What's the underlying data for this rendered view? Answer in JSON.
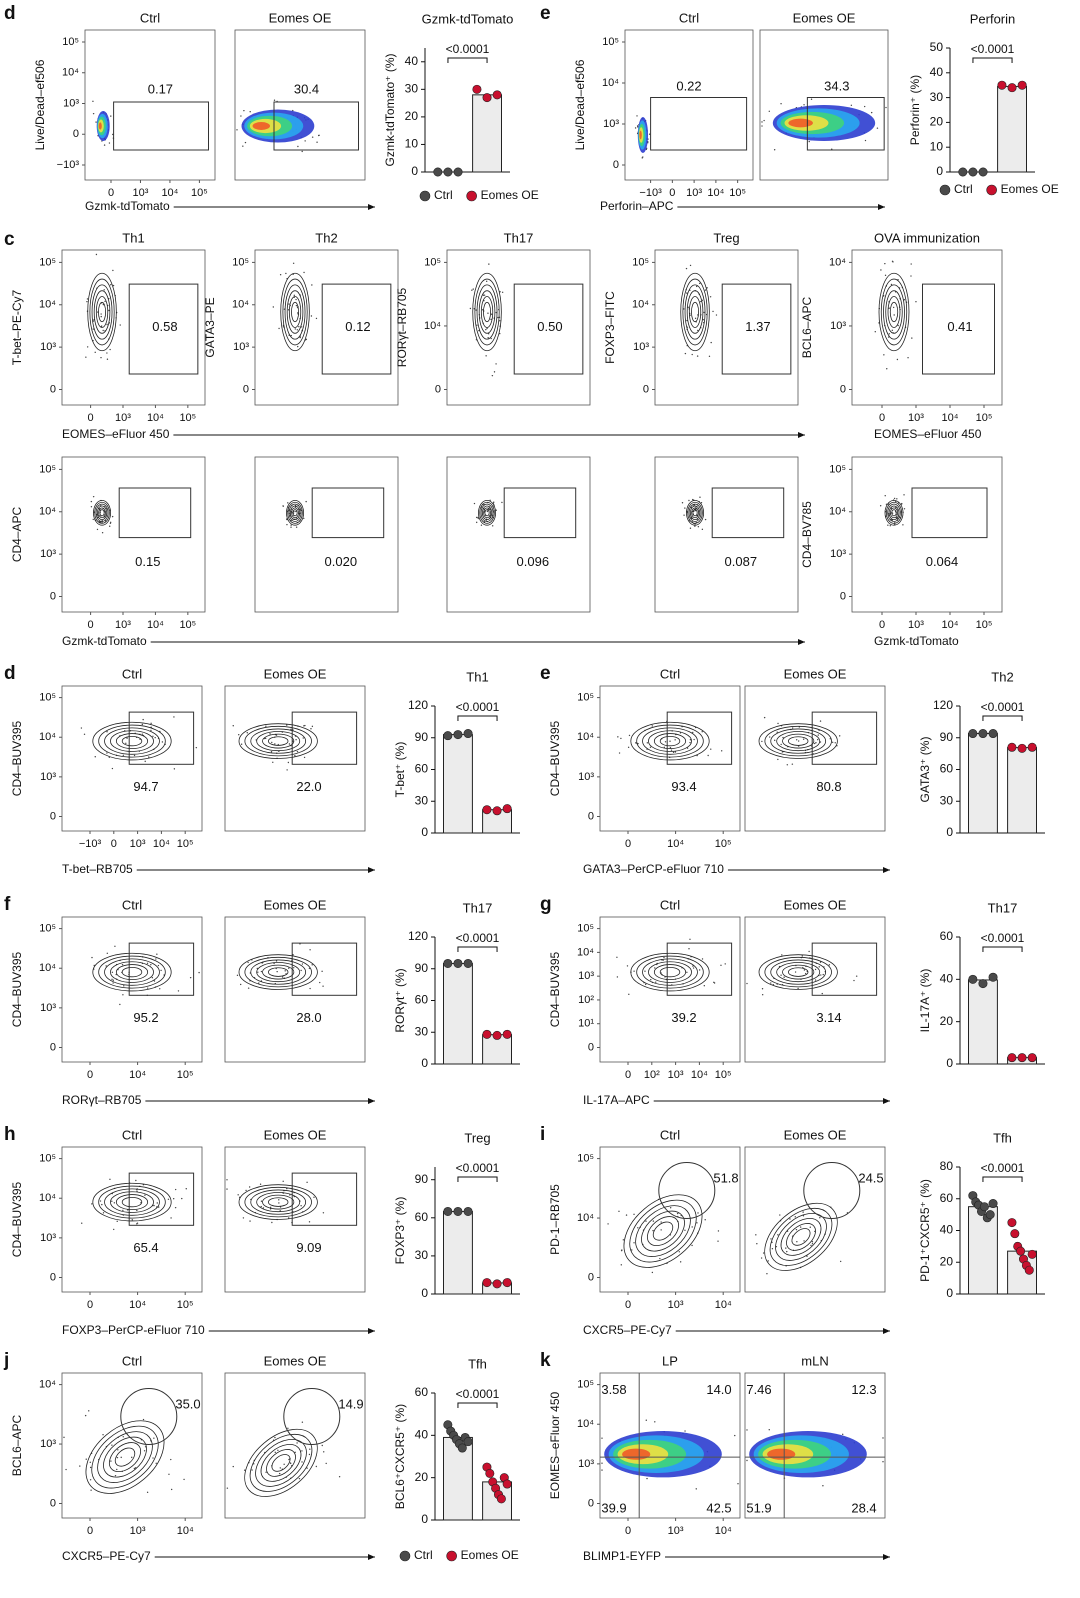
{
  "legends": [
    {
      "items": [
        {
          "name": "Ctrl",
          "color": "#4a4a4a"
        },
        {
          "name": "Eomes OE",
          "color": "#c8102e"
        }
      ]
    },
    {
      "items": [
        {
          "name": "Ctrl",
          "color": "#4a4a4a"
        },
        {
          "name": "Eomes OE",
          "color": "#c8102e"
        }
      ]
    },
    {
      "items": [
        {
          "name": "Ctrl",
          "color": "#4a4a4a"
        },
        {
          "name": "Eomes OE",
          "color": "#c8102e"
        }
      ]
    }
  ],
  "panels": [
    {
      "letter": "d",
      "xlabel": "Gzmk-tdTomato",
      "flows": [
        {
          "title": "Ctrl",
          "ylabel": "Live/Dead–ef506",
          "yticks": [
            "10⁵",
            "10⁴",
            "10³",
            "0",
            "−10³"
          ],
          "xticks": [
            "0",
            "10³",
            "10⁴",
            "10⁵"
          ],
          "gates": [
            "0.17"
          ]
        },
        {
          "title": "Eomes OE",
          "gates": [
            "30.4"
          ]
        }
      ],
      "bar": {
        "title": "Gzmk-tdTomato",
        "ylabel": "Gzmk-tdTomato⁺ (%)",
        "ylim": [
          0,
          45
        ],
        "yticks": [
          0,
          10,
          20,
          30,
          40
        ],
        "pvalue": "<0.0001",
        "series": [
          {
            "color": "#4a4a4a",
            "mean": 0,
            "values": [
              0,
              0,
              0
            ]
          },
          {
            "color": "#c8102e",
            "mean": 28,
            "values": [
              30,
              27,
              28
            ]
          }
        ]
      }
    },
    {
      "letter": "e",
      "xlabel": "Perforin–APC",
      "flows": [
        {
          "title": "Ctrl",
          "ylabel": "Live/Dead–ef506",
          "yticks": [
            "10⁵",
            "10⁴",
            "10³",
            "0"
          ],
          "xticks": [
            "−10³",
            "0",
            "10³",
            "10⁴",
            "10⁵"
          ],
          "gates": [
            "0.22"
          ]
        },
        {
          "title": "Eomes OE",
          "gates": [
            "34.3"
          ]
        }
      ],
      "bar": {
        "title": "Perforin",
        "ylabel": "Perforin⁺ (%)",
        "ylim": [
          0,
          50
        ],
        "yticks": [
          0,
          10,
          20,
          30,
          40,
          50
        ],
        "pvalue": "<0.0001",
        "series": [
          {
            "color": "#4a4a4a",
            "mean": 0,
            "values": [
              0,
              0,
              0
            ]
          },
          {
            "color": "#c8102e",
            "mean": 34.5,
            "values": [
              35,
              34,
              35
            ]
          }
        ]
      }
    },
    {
      "letter": "c",
      "flows": [
        {
          "title": "Th1",
          "ylabel": "T-bet–PE-Cy7",
          "yticks": [
            "10⁵",
            "10⁴",
            "10³",
            "0"
          ],
          "xticks": [
            "0",
            "10³",
            "10⁴",
            "10⁵"
          ],
          "xlabel": "EOMES–eFluor 450",
          "gates": [
            "0.58"
          ]
        },
        {
          "title": "Th2",
          "ylabel": "GATA3–PE",
          "yticks": [
            "10⁵",
            "10⁴",
            "10³",
            "0"
          ],
          "gates": [
            "0.12"
          ]
        },
        {
          "title": "Th17",
          "ylabel": "RORγt–RB705",
          "yticks": [
            "10⁵",
            "10⁴",
            "0"
          ],
          "gates": [
            "0.50"
          ]
        },
        {
          "title": "Treg",
          "ylabel": "FOXP3–FITC",
          "yticks": [
            "10⁵",
            "10⁴",
            "10³",
            "0"
          ],
          "gates": [
            "1.37"
          ]
        },
        {
          "title": "OVA immunization",
          "ylabel": "BCL6–APC",
          "yticks": [
            "10⁴",
            "10³",
            "0"
          ],
          "xticks": [
            "0",
            "10³",
            "10⁴",
            "10⁵"
          ],
          "xlabel": "EOMES–eFluor 450",
          "gates": [
            "0.41"
          ]
        },
        {
          "ylabel": "CD4–APC",
          "yticks": [
            "10⁵",
            "10⁴",
            "10³",
            "0"
          ],
          "xticks": [
            "0",
            "10³",
            "10⁴",
            "10⁵"
          ],
          "xlabel": "Gzmk-tdTomato",
          "gates": [
            "0.15"
          ]
        },
        {
          "gates": [
            "0.020"
          ]
        },
        {
          "gates": [
            "0.096"
          ]
        },
        {
          "gates": [
            "0.087"
          ]
        },
        {
          "ylabel": "CD4–BV785",
          "yticks": [
            "10⁵",
            "10⁴",
            "10³",
            "0"
          ],
          "xticks": [
            "0",
            "10³",
            "10⁴",
            "10⁵"
          ],
          "xlabel": "Gzmk-tdTomato",
          "gates": [
            "0.064"
          ]
        }
      ]
    },
    {
      "letter": "d",
      "xlabel": "T-bet–RB705",
      "flows": [
        {
          "title": "Ctrl",
          "ylabel": "CD4–BUV395",
          "yticks": [
            "10⁵",
            "10⁴",
            "10³",
            "0"
          ],
          "xticks": [
            "−10³",
            "0",
            "10³",
            "10⁴",
            "10⁵"
          ],
          "gates": [
            "94.7"
          ]
        },
        {
          "title": "Eomes OE",
          "gates": [
            "22.0"
          ]
        }
      ],
      "bar": {
        "title": "Th1",
        "ylabel": "T-bet⁺ (%)",
        "ylim": [
          0,
          120
        ],
        "yticks": [
          0,
          30,
          60,
          90,
          120
        ],
        "pvalue": "<0.0001",
        "series": [
          {
            "color": "#4a4a4a",
            "mean": 93,
            "values": [
              92,
              93,
              94
            ]
          },
          {
            "color": "#c8102e",
            "mean": 22,
            "values": [
              22,
              21,
              23
            ]
          }
        ]
      }
    },
    {
      "letter": "e",
      "xlabel": "GATA3–PerCP-eFluor 710",
      "flows": [
        {
          "title": "Ctrl",
          "ylabel": "CD4–BUV395",
          "yticks": [
            "10⁵",
            "10⁴",
            "10³",
            "0"
          ],
          "xticks": [
            "0",
            "10⁴",
            "10⁵"
          ],
          "gates": [
            "93.4"
          ]
        },
        {
          "title": "Eomes OE",
          "gates": [
            "80.8"
          ]
        }
      ],
      "bar": {
        "title": "Th2",
        "ylabel": "GATA3⁺ (%)",
        "ylim": [
          0,
          120
        ],
        "yticks": [
          0,
          30,
          60,
          90,
          120
        ],
        "pvalue": "<0.0001",
        "series": [
          {
            "color": "#4a4a4a",
            "mean": 94,
            "values": [
              94,
              94,
              94
            ]
          },
          {
            "color": "#c8102e",
            "mean": 80.7,
            "values": [
              81,
              80,
              81
            ]
          }
        ]
      }
    },
    {
      "letter": "f",
      "xlabel": "RORγt–RB705",
      "flows": [
        {
          "title": "Ctrl",
          "ylabel": "CD4–BUV395",
          "yticks": [
            "10⁵",
            "10⁴",
            "10³",
            "0"
          ],
          "xticks": [
            "0",
            "10⁴",
            "10⁵"
          ],
          "gates": [
            "95.2"
          ]
        },
        {
          "title": "Eomes OE",
          "gates": [
            "28.0"
          ]
        }
      ],
      "bar": {
        "title": "Th17",
        "ylabel": "RORγt⁺ (%)",
        "ylim": [
          0,
          120
        ],
        "yticks": [
          0,
          30,
          60,
          90,
          120
        ],
        "pvalue": "<0.0001",
        "series": [
          {
            "color": "#4a4a4a",
            "mean": 95,
            "values": [
              95,
              95,
              95
            ]
          },
          {
            "color": "#c8102e",
            "mean": 27.7,
            "values": [
              28,
              27,
              28
            ]
          }
        ]
      }
    },
    {
      "letter": "g",
      "xlabel": "IL-17A–APC",
      "flows": [
        {
          "title": "Ctrl",
          "ylabel": "CD4–BUV395",
          "yticks": [
            "10⁵",
            "10⁴",
            "10³",
            "10²",
            "10¹",
            "0"
          ],
          "xticks": [
            "0",
            "10²",
            "10³",
            "10⁴",
            "10⁵"
          ],
          "gates": [
            "39.2"
          ]
        },
        {
          "title": "Eomes OE",
          "gates": [
            "3.14"
          ]
        }
      ],
      "bar": {
        "title": "Th17",
        "ylabel": "IL-17A⁺ (%)",
        "ylim": [
          0,
          60
        ],
        "yticks": [
          0,
          20,
          40,
          60
        ],
        "pvalue": "<0.0001",
        "series": [
          {
            "color": "#4a4a4a",
            "mean": 39.7,
            "values": [
              40,
              38,
              41
            ]
          },
          {
            "color": "#c8102e",
            "mean": 3,
            "values": [
              3,
              3,
              3
            ]
          }
        ]
      }
    },
    {
      "letter": "h",
      "xlabel": "FOXP3–PerCP-eFluor 710",
      "flows": [
        {
          "title": "Ctrl",
          "ylabel": "CD4–BUV395",
          "yticks": [
            "10⁵",
            "10⁴",
            "10³",
            "0"
          ],
          "xticks": [
            "0",
            "10⁴",
            "10⁵"
          ],
          "gates": [
            "65.4"
          ]
        },
        {
          "title": "Eomes OE",
          "gates": [
            "9.09"
          ]
        }
      ],
      "bar": {
        "title": "Treg",
        "ylabel": "FOXP3⁺ (%)",
        "ylim": [
          0,
          100
        ],
        "yticks": [
          0,
          30,
          60,
          90
        ],
        "pvalue": "<0.0001",
        "series": [
          {
            "color": "#4a4a4a",
            "mean": 65,
            "values": [
              65,
              65,
              65
            ]
          },
          {
            "color": "#c8102e",
            "mean": 8.7,
            "values": [
              9,
              8,
              9
            ]
          }
        ]
      }
    },
    {
      "letter": "i",
      "xlabel": "CXCR5–PE-Cy7",
      "flows": [
        {
          "title": "Ctrl",
          "ylabel": "PD-1–RB705",
          "yticks": [
            "10⁵",
            "10⁴",
            "0"
          ],
          "xticks": [
            "0",
            "10³",
            "10⁴"
          ],
          "gates": [
            "51.8"
          ]
        },
        {
          "title": "Eomes OE",
          "gates": [
            "24.5"
          ]
        }
      ],
      "bar": {
        "title": "Tfh",
        "ylabel": "PD-1⁺CXCR5⁺ (%)",
        "ylim": [
          0,
          80
        ],
        "yticks": [
          0,
          20,
          40,
          60,
          80
        ],
        "pvalue": "<0.0001",
        "series": [
          {
            "color": "#4a4a4a",
            "mean": 55,
            "values": [
              62,
              58,
              56,
              52,
              55,
              48,
              50,
              57
            ]
          },
          {
            "color": "#c8102e",
            "mean": 27,
            "values": [
              45,
              38,
              30,
              27,
              22,
              18,
              15,
              25
            ]
          }
        ]
      }
    },
    {
      "letter": "j",
      "xlabel": "CXCR5–PE-Cy7",
      "flows": [
        {
          "title": "Ctrl",
          "ylabel": "BCL6–APC",
          "yticks": [
            "10⁴",
            "10³",
            "0"
          ],
          "xticks": [
            "0",
            "10³",
            "10⁴"
          ],
          "gates": [
            "35.0"
          ]
        },
        {
          "title": "Eomes OE",
          "gates": [
            "14.9"
          ]
        }
      ],
      "bar": {
        "title": "Tfh",
        "ylabel": "BCL6⁺CXCR5⁺ (%)",
        "ylim": [
          0,
          60
        ],
        "yticks": [
          0,
          20,
          40,
          60
        ],
        "pvalue": "<0.0001",
        "series": [
          {
            "color": "#4a4a4a",
            "mean": 39,
            "values": [
              45,
              42,
              40,
              38,
              36,
              34,
              39,
              37
            ]
          },
          {
            "color": "#c8102e",
            "mean": 18,
            "values": [
              25,
              22,
              18,
              15,
              12,
              10,
              20,
              17
            ]
          }
        ]
      }
    },
    {
      "letter": "k",
      "xlabel": "BLIMP1-EYFP",
      "flows": [
        {
          "title": "LP",
          "ylabel": "EOMES–eFluor 450",
          "yticks": [
            "10⁵",
            "10⁴",
            "10³",
            "0"
          ],
          "xticks": [
            "0",
            "10³",
            "10⁴"
          ],
          "gates": [
            "3.58",
            "14.0",
            "39.9",
            "42.5"
          ]
        },
        {
          "title": "mLN",
          "gates": [
            "7.46",
            "12.3",
            "51.9",
            "28.4"
          ]
        }
      ]
    }
  ]
}
